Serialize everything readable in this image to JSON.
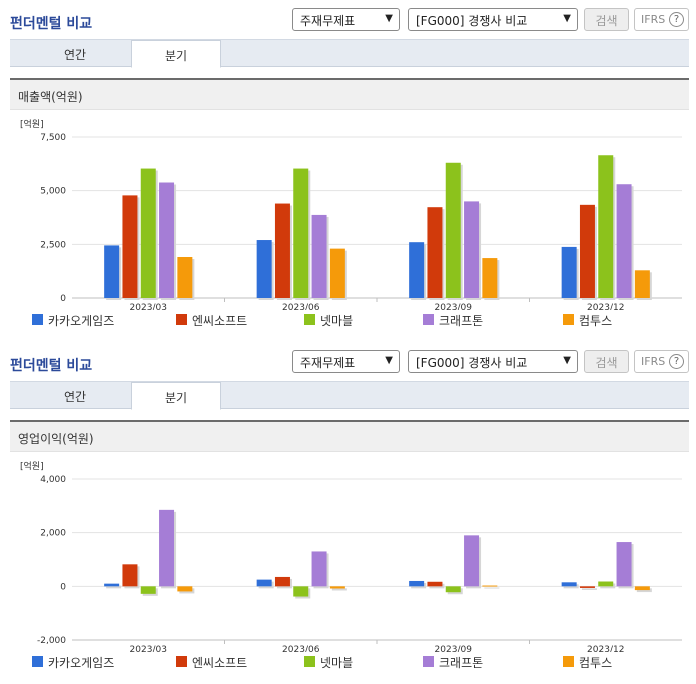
{
  "header": {
    "title": "펀더멘털 비교",
    "select_type": "주재무제표",
    "select_group": "[FG000] 경쟁사 비교",
    "search_label": "검색",
    "ifrs_label": "IFRS",
    "help_glyph": "?"
  },
  "tabs": [
    {
      "label": "연간",
      "active": false
    },
    {
      "label": "분기",
      "active": true
    }
  ],
  "colors": {
    "accent_title": "#2c4a9a",
    "카카오게임즈": "#2f6fd8",
    "엔씨소프트": "#d13a0b",
    "넷마블": "#8cc21c",
    "크래프톤": "#a57dd6",
    "컴투스": "#f59a0a"
  },
  "chart_data": [
    {
      "type": "bar",
      "title": "매출액(억원)",
      "unit_label": "[억원]",
      "categories": [
        "2023/03",
        "2023/06",
        "2023/09",
        "2023/12"
      ],
      "ylim": [
        0,
        7500
      ],
      "yticks": [
        0,
        2500,
        5000,
        7500
      ],
      "ytick_labels": [
        "0",
        "2,500",
        "5,000",
        "7,500"
      ],
      "grid": true,
      "legend_position": "bottom",
      "series": [
        {
          "name": "카카오게임즈",
          "color": "#2f6fd8",
          "values": [
            2450,
            2700,
            2600,
            2380
          ]
        },
        {
          "name": "엔씨소프트",
          "color": "#d13a0b",
          "values": [
            4780,
            4400,
            4230,
            4340
          ]
        },
        {
          "name": "넷마블",
          "color": "#8cc21c",
          "values": [
            6030,
            6030,
            6300,
            6650
          ]
        },
        {
          "name": "크래프톤",
          "color": "#a57dd6",
          "values": [
            5380,
            3870,
            4500,
            5300
          ]
        },
        {
          "name": "컴투스",
          "color": "#f59a0a",
          "values": [
            1910,
            2300,
            1860,
            1290
          ]
        }
      ]
    },
    {
      "type": "bar",
      "title": "영업이익(억원)",
      "unit_label": "[억원]",
      "categories": [
        "2023/03",
        "2023/06",
        "2023/09",
        "2023/12"
      ],
      "ylim": [
        -2000,
        4000
      ],
      "yticks": [
        -2000,
        0,
        2000,
        4000
      ],
      "ytick_labels": [
        "-2,000",
        "0",
        "2,000",
        "4,000"
      ],
      "grid": true,
      "legend_position": "bottom",
      "series": [
        {
          "name": "카카오게임즈",
          "color": "#2f6fd8",
          "values": [
            100,
            250,
            200,
            150
          ]
        },
        {
          "name": "엔씨소프트",
          "color": "#d13a0b",
          "values": [
            820,
            350,
            170,
            -60
          ]
        },
        {
          "name": "넷마블",
          "color": "#8cc21c",
          "values": [
            -280,
            -380,
            -220,
            180
          ]
        },
        {
          "name": "크래프톤",
          "color": "#a57dd6",
          "values": [
            2850,
            1300,
            1900,
            1650
          ]
        },
        {
          "name": "컴투스",
          "color": "#f59a0a",
          "values": [
            -190,
            -80,
            30,
            -140
          ]
        }
      ]
    }
  ]
}
